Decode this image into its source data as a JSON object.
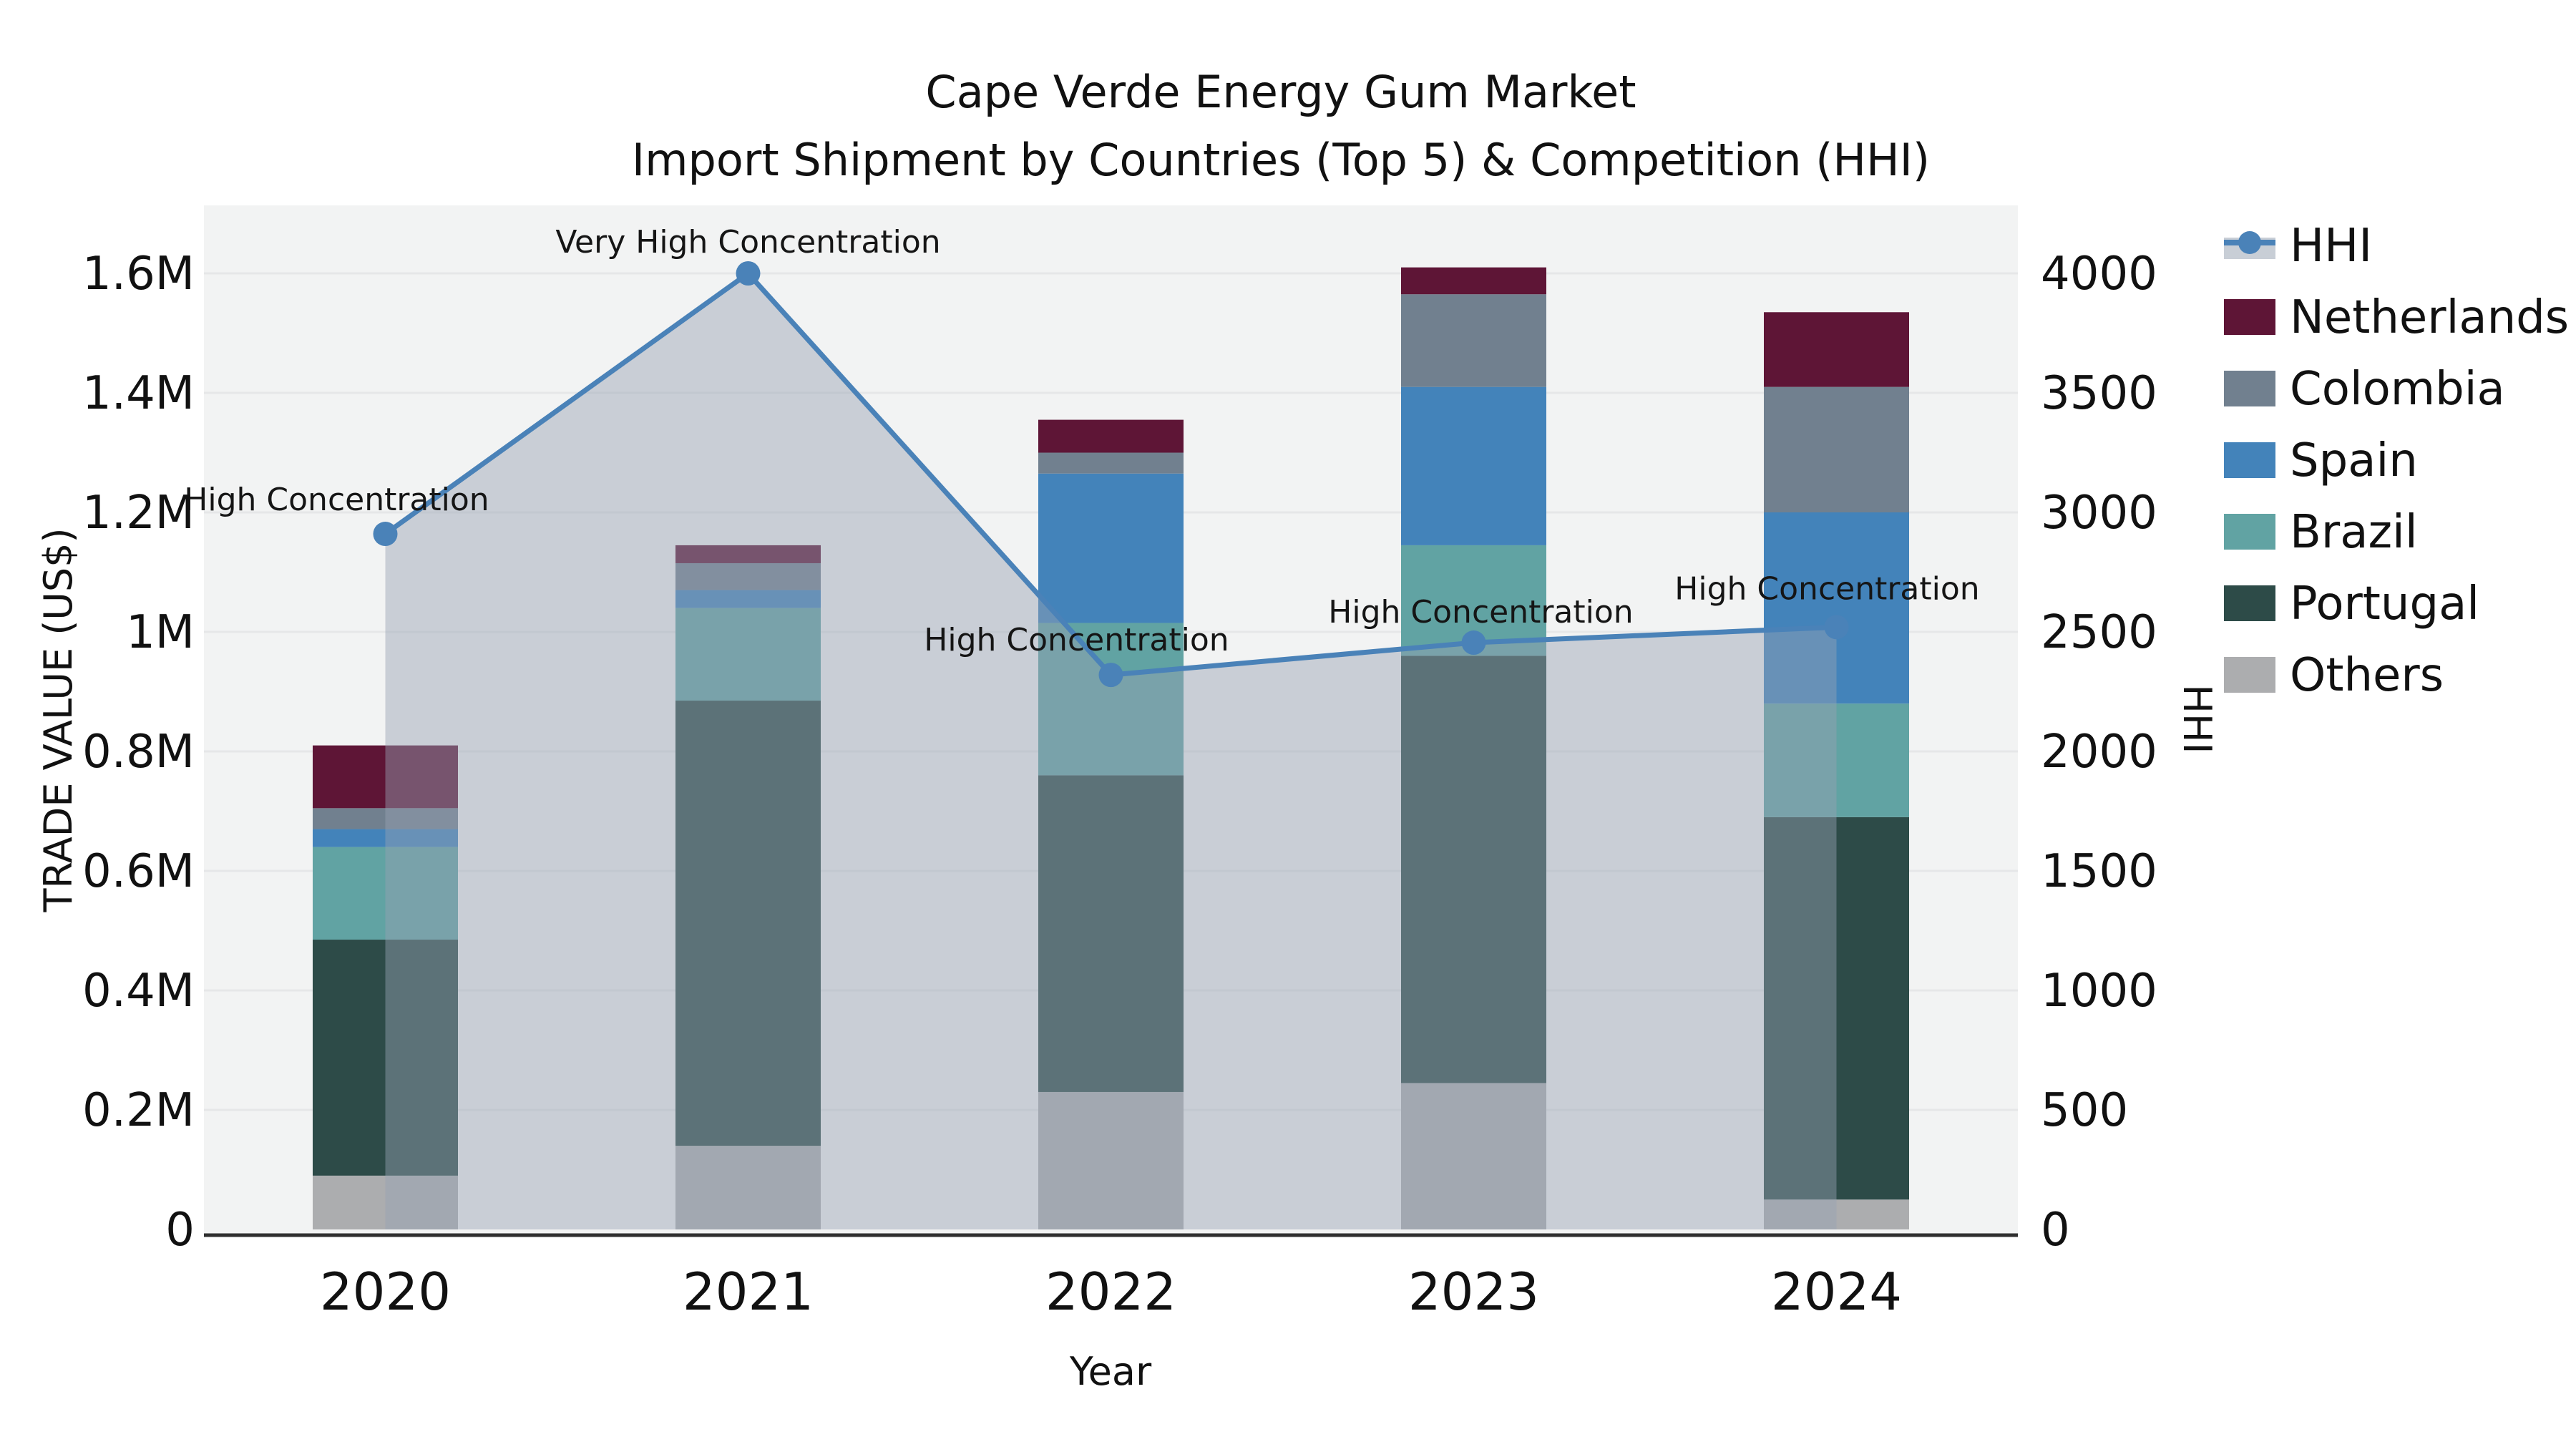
{
  "title_lines": [
    "Cape Verde Energy Gum Market",
    "Import Shipment by Countries (Top 5) & Competition (HHI)"
  ],
  "chart_data": {
    "type": "bar+line",
    "title": "Cape Verde Energy Gum Market — Import Shipment by Countries (Top 5) & Competition (HHI)",
    "categories": [
      "2020",
      "2021",
      "2022",
      "2023",
      "2024"
    ],
    "stack_order_note": "series listed bottom-to-top of the stacked bars; values in US$",
    "series": [
      {
        "name": "Others",
        "color": "#acadaf",
        "values": [
          90000,
          140000,
          230000,
          245000,
          50000
        ]
      },
      {
        "name": "Portugal",
        "color": "#2d4b48",
        "values": [
          395000,
          745000,
          530000,
          715000,
          640000
        ]
      },
      {
        "name": "Brazil",
        "color": "#61a3a3",
        "values": [
          155000,
          155000,
          255000,
          185000,
          190000
        ]
      },
      {
        "name": "Spain",
        "color": "#4383ba",
        "values": [
          30000,
          30000,
          250000,
          265000,
          320000
        ]
      },
      {
        "name": "Colombia",
        "color": "#71808f",
        "values": [
          35000,
          45000,
          35000,
          155000,
          210000
        ]
      },
      {
        "name": "Netherlands",
        "color": "#5e1536",
        "values": [
          105000,
          30000,
          55000,
          45000,
          125000
        ]
      }
    ],
    "bar_totals": [
      810000,
      1145000,
      1355000,
      1610000,
      1535000
    ],
    "hhi": {
      "name": "HHI",
      "line_color": "#4a82b8",
      "area_color": "rgba(150,162,180,0.45)",
      "values": [
        2910,
        4000,
        2320,
        2455,
        2520
      ]
    },
    "annotations": [
      {
        "year": "2020",
        "text": "High Concentration"
      },
      {
        "year": "2021",
        "text": "Very High Concentration"
      },
      {
        "year": "2022",
        "text": "High Concentration"
      },
      {
        "year": "2023",
        "text": "High Concentration"
      },
      {
        "year": "2024",
        "text": "High Concentration"
      }
    ],
    "xlabel": "Year",
    "ylabel_left": "TRADE VALUE (US$)",
    "ylabel_right": "HHI",
    "ylim_left": [
      0,
      1720000
    ],
    "ylim_right": [
      0,
      4300
    ],
    "yticks_left": [
      {
        "v": 0,
        "label": "0"
      },
      {
        "v": 200000,
        "label": "0.2M"
      },
      {
        "v": 400000,
        "label": "0.4M"
      },
      {
        "v": 600000,
        "label": "0.6M"
      },
      {
        "v": 800000,
        "label": "0.8M"
      },
      {
        "v": 1000000,
        "label": "1M"
      },
      {
        "v": 1200000,
        "label": "1.2M"
      },
      {
        "v": 1400000,
        "label": "1.4M"
      },
      {
        "v": 1600000,
        "label": "1.6M"
      }
    ],
    "yticks_right": [
      {
        "v": 0,
        "label": "0"
      },
      {
        "v": 500,
        "label": "500"
      },
      {
        "v": 1000,
        "label": "1000"
      },
      {
        "v": 1500,
        "label": "1500"
      },
      {
        "v": 2000,
        "label": "2000"
      },
      {
        "v": 2500,
        "label": "2500"
      },
      {
        "v": 3000,
        "label": "3000"
      },
      {
        "v": 3500,
        "label": "3500"
      },
      {
        "v": 4000,
        "label": "4000"
      }
    ],
    "grid": true,
    "legend_position": "right",
    "legend_items": [
      "HHI",
      "Netherlands",
      "Colombia",
      "Spain",
      "Brazil",
      "Portugal",
      "Others"
    ],
    "plot_bg_color": "#f2f3f3",
    "grid_color": "#e6e7e8",
    "axis_line_color": "#2f2f2f"
  }
}
